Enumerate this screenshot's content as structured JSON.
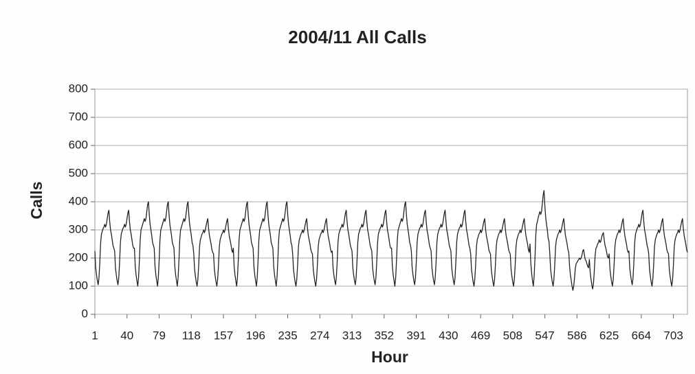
{
  "chart_data": {
    "type": "line",
    "title": "2004/11  All Calls",
    "x_label": "Hour",
    "y_label": "Calls",
    "xlim": [
      1,
      720
    ],
    "ylim": [
      0,
      800
    ],
    "xticks": [
      1,
      40,
      79,
      118,
      157,
      196,
      235,
      274,
      313,
      352,
      391,
      430,
      469,
      508,
      547,
      586,
      625,
      664,
      703
    ],
    "yticks": [
      0,
      100,
      200,
      300,
      400,
      500,
      600,
      700,
      800
    ],
    "grid": true,
    "color": "#222222",
    "x": [
      1,
      2,
      3,
      4,
      5,
      6,
      7,
      8,
      9,
      10,
      11,
      12,
      13,
      14,
      15,
      16,
      17,
      18,
      19,
      20,
      21,
      22,
      23,
      24,
      25,
      26,
      27,
      28,
      29,
      30,
      31,
      32,
      33,
      34,
      35,
      36,
      37,
      38,
      39,
      40,
      41,
      42,
      43,
      44,
      45,
      46,
      47,
      48,
      49,
      50,
      51,
      52,
      53,
      54,
      55,
      56,
      57,
      58,
      59,
      60,
      61,
      62,
      63,
      64,
      65,
      66,
      67,
      68,
      69,
      70,
      71,
      72,
      73,
      74,
      75,
      76,
      77,
      78,
      79,
      80,
      81,
      82,
      83,
      84,
      85,
      86,
      87,
      88,
      89,
      90,
      91,
      92,
      93,
      94,
      95,
      96,
      97,
      98,
      99,
      100,
      101,
      102,
      103,
      104,
      105,
      106,
      107,
      108,
      109,
      110,
      111,
      112,
      113,
      114,
      115,
      116,
      117,
      118,
      119,
      120,
      121,
      122,
      123,
      124,
      125,
      126,
      127,
      128,
      129,
      130,
      131,
      132,
      133,
      134,
      135,
      136,
      137,
      138,
      139,
      140,
      141,
      142,
      143,
      144,
      145,
      146,
      147,
      148,
      149,
      150,
      151,
      152,
      153,
      154,
      155,
      156,
      157,
      158,
      159,
      160,
      161,
      162,
      163,
      164,
      165,
      166,
      167,
      168,
      169,
      170,
      171,
      172,
      173,
      174,
      175,
      176,
      177,
      178,
      179,
      180,
      181,
      182,
      183,
      184,
      185,
      186,
      187,
      188,
      189,
      190,
      191,
      192,
      193,
      194,
      195,
      196,
      197,
      198,
      199,
      200,
      201,
      202,
      203,
      204,
      205,
      206,
      207,
      208,
      209,
      210,
      211,
      212,
      213,
      214,
      215,
      216,
      217,
      218,
      219,
      220,
      221,
      222,
      223,
      224,
      225,
      226,
      227,
      228,
      229,
      230,
      231,
      232,
      233,
      234,
      235,
      236,
      237,
      238,
      239,
      240,
      241,
      242,
      243,
      244,
      245,
      246,
      247,
      248,
      249,
      250,
      251,
      252,
      253,
      254,
      255,
      256,
      257,
      258,
      259,
      260,
      261,
      262,
      263,
      264,
      265,
      266,
      267,
      268,
      269,
      270,
      271,
      272,
      273,
      274,
      275,
      276,
      277,
      278,
      279,
      280,
      281,
      282,
      283,
      284,
      285,
      286,
      287,
      288,
      289,
      290,
      291,
      292,
      293,
      294,
      295,
      296,
      297,
      298,
      299,
      300,
      301,
      302,
      303,
      304,
      305,
      306,
      307,
      308,
      309,
      310,
      311,
      312,
      313,
      314,
      315,
      316,
      317,
      318,
      319,
      320,
      321,
      322,
      323,
      324,
      325,
      326,
      327,
      328,
      329,
      330,
      331,
      332,
      333,
      334,
      335,
      336,
      337,
      338,
      339,
      340,
      341,
      342,
      343,
      344,
      345,
      346,
      347,
      348,
      349,
      350,
      351,
      352,
      353,
      354,
      355,
      356,
      357,
      358,
      359,
      360,
      361,
      362,
      363,
      364,
      365,
      366,
      367,
      368,
      369,
      370,
      371,
      372,
      373,
      374,
      375,
      376,
      377,
      378,
      379,
      380,
      381,
      382,
      383,
      384,
      385,
      386,
      387,
      388,
      389,
      390,
      391,
      392,
      393,
      394,
      395,
      396,
      397,
      398,
      399,
      400,
      401,
      402,
      403,
      404,
      405,
      406,
      407,
      408,
      409,
      410,
      411,
      412,
      413,
      414,
      415,
      416,
      417,
      418,
      419,
      420,
      421,
      422,
      423,
      424,
      425,
      426,
      427,
      428,
      429,
      430,
      431,
      432,
      433,
      434,
      435,
      436,
      437,
      438,
      439,
      440,
      441,
      442,
      443,
      444,
      445,
      446,
      447,
      448,
      449,
      450,
      451,
      452,
      453,
      454,
      455,
      456,
      457,
      458,
      459,
      460,
      461,
      462,
      463,
      464,
      465,
      466,
      467,
      468,
      469,
      470,
      471,
      472,
      473,
      474,
      475,
      476,
      477,
      478,
      479,
      480,
      481,
      482,
      483,
      484,
      485,
      486,
      487,
      488,
      489,
      490,
      491,
      492,
      493,
      494,
      495,
      496,
      497,
      498,
      499,
      500,
      501,
      502,
      503,
      504,
      505,
      506,
      507,
      508,
      509,
      510,
      511,
      512,
      513,
      514,
      515,
      516,
      517,
      518,
      519,
      520,
      521,
      522,
      523,
      524,
      525,
      526,
      527,
      528,
      529,
      530,
      531,
      532,
      533,
      534,
      535,
      536,
      537,
      538,
      539,
      540,
      541,
      542,
      543,
      544,
      545,
      546,
      547,
      548,
      549,
      550,
      551,
      552,
      553,
      554,
      555,
      556,
      557,
      558,
      559,
      560,
      561,
      562,
      563,
      564,
      565,
      566,
      567,
      568,
      569,
      570,
      571,
      572,
      573,
      574,
      575,
      576,
      577,
      578,
      579,
      580,
      581,
      582,
      583,
      584,
      585,
      586,
      587,
      588,
      589,
      590,
      591,
      592,
      593,
      594,
      595,
      596,
      597,
      598,
      599,
      600,
      601,
      602,
      603,
      604,
      605,
      606,
      607,
      608,
      609,
      610,
      611,
      612,
      613,
      614,
      615,
      616,
      617,
      618,
      619,
      620,
      621,
      622,
      623,
      624,
      625,
      626,
      627,
      628,
      629,
      630,
      631,
      632,
      633,
      634,
      635,
      636,
      637,
      638,
      639,
      640,
      641,
      642,
      643,
      644,
      645,
      646,
      647,
      648,
      649,
      650,
      651,
      652,
      653,
      654,
      655,
      656,
      657,
      658,
      659,
      660,
      661,
      662,
      663,
      664,
      665,
      666,
      667,
      668,
      669,
      670,
      671,
      672,
      673,
      674,
      675,
      676,
      677,
      678,
      679,
      680,
      681,
      682,
      683,
      684,
      685,
      686,
      687,
      688,
      689,
      690,
      691,
      692,
      693,
      694,
      695,
      696,
      697,
      698,
      699,
      700,
      701,
      702,
      703,
      704,
      705,
      706,
      707,
      708,
      709,
      710,
      711,
      712,
      713,
      714,
      715,
      716,
      717,
      718,
      719,
      720
    ],
    "values": [
      225,
      165,
      140,
      120,
      105,
      130,
      185,
      255,
      285,
      295,
      305,
      310,
      320,
      310,
      320,
      340,
      360,
      370,
      330,
      300,
      285,
      265,
      245,
      235,
      225,
      165,
      140,
      120,
      105,
      130,
      185,
      255,
      285,
      295,
      305,
      310,
      320,
      310,
      320,
      340,
      360,
      370,
      330,
      300,
      285,
      265,
      245,
      235,
      235,
      170,
      140,
      120,
      100,
      130,
      190,
      265,
      300,
      310,
      320,
      330,
      340,
      330,
      340,
      365,
      390,
      400,
      355,
      320,
      300,
      280,
      255,
      245,
      235,
      170,
      140,
      120,
      100,
      130,
      190,
      265,
      300,
      310,
      320,
      330,
      340,
      330,
      340,
      365,
      390,
      400,
      355,
      320,
      300,
      280,
      255,
      245,
      235,
      170,
      140,
      120,
      100,
      130,
      190,
      265,
      300,
      310,
      320,
      330,
      340,
      330,
      340,
      365,
      390,
      400,
      355,
      320,
      300,
      280,
      255,
      245,
      215,
      160,
      135,
      115,
      100,
      125,
      175,
      240,
      265,
      275,
      285,
      290,
      300,
      290,
      300,
      315,
      330,
      340,
      305,
      280,
      265,
      250,
      230,
      220,
      215,
      160,
      135,
      115,
      100,
      125,
      175,
      240,
      265,
      275,
      285,
      290,
      300,
      290,
      300,
      315,
      330,
      340,
      305,
      280,
      265,
      250,
      230,
      220,
      235,
      170,
      140,
      120,
      100,
      130,
      190,
      265,
      300,
      310,
      320,
      330,
      340,
      330,
      340,
      365,
      390,
      400,
      355,
      320,
      300,
      280,
      255,
      245,
      235,
      170,
      140,
      120,
      100,
      130,
      190,
      265,
      300,
      310,
      320,
      330,
      340,
      330,
      340,
      365,
      390,
      400,
      355,
      320,
      300,
      280,
      255,
      245,
      235,
      170,
      140,
      120,
      100,
      130,
      190,
      265,
      300,
      310,
      320,
      330,
      340,
      330,
      340,
      365,
      390,
      400,
      355,
      320,
      300,
      280,
      255,
      245,
      215,
      160,
      135,
      115,
      100,
      125,
      175,
      240,
      265,
      275,
      285,
      290,
      300,
      290,
      300,
      315,
      330,
      340,
      305,
      280,
      265,
      250,
      230,
      220,
      215,
      160,
      135,
      115,
      100,
      125,
      175,
      240,
      265,
      275,
      285,
      290,
      300,
      290,
      300,
      315,
      330,
      340,
      305,
      280,
      265,
      250,
      230,
      220,
      225,
      165,
      140,
      120,
      105,
      130,
      185,
      255,
      285,
      295,
      305,
      310,
      320,
      310,
      320,
      340,
      360,
      370,
      330,
      300,
      285,
      265,
      245,
      235,
      225,
      165,
      140,
      120,
      105,
      130,
      185,
      255,
      285,
      295,
      305,
      310,
      320,
      310,
      320,
      340,
      360,
      370,
      330,
      300,
      285,
      265,
      245,
      235,
      225,
      165,
      140,
      120,
      105,
      130,
      185,
      255,
      285,
      295,
      305,
      310,
      320,
      310,
      320,
      340,
      360,
      370,
      330,
      300,
      285,
      265,
      245,
      235,
      235,
      170,
      140,
      120,
      100,
      130,
      190,
      265,
      300,
      310,
      320,
      330,
      340,
      330,
      340,
      365,
      390,
      400,
      355,
      320,
      300,
      280,
      255,
      245,
      225,
      165,
      140,
      120,
      105,
      130,
      185,
      255,
      285,
      295,
      305,
      310,
      320,
      310,
      320,
      340,
      360,
      370,
      330,
      300,
      285,
      265,
      245,
      235,
      225,
      165,
      140,
      120,
      105,
      130,
      185,
      255,
      285,
      295,
      305,
      310,
      320,
      310,
      320,
      340,
      360,
      370,
      330,
      300,
      285,
      265,
      245,
      235,
      225,
      165,
      140,
      120,
      105,
      130,
      185,
      255,
      285,
      295,
      305,
      310,
      320,
      310,
      320,
      340,
      360,
      370,
      330,
      300,
      285,
      265,
      245,
      235,
      215,
      160,
      135,
      115,
      100,
      125,
      175,
      240,
      265,
      275,
      285,
      290,
      300,
      290,
      300,
      315,
      330,
      340,
      305,
      280,
      265,
      250,
      230,
      220,
      215,
      160,
      135,
      115,
      100,
      125,
      175,
      240,
      265,
      275,
      285,
      290,
      300,
      290,
      300,
      315,
      330,
      340,
      305,
      280,
      265,
      250,
      230,
      220,
      215,
      160,
      135,
      115,
      100,
      125,
      175,
      240,
      265,
      275,
      285,
      290,
      300,
      290,
      300,
      315,
      330,
      340,
      305,
      280,
      265,
      250,
      230,
      220,
      250,
      180,
      145,
      120,
      100,
      135,
      200,
      280,
      320,
      330,
      345,
      355,
      365,
      355,
      365,
      395,
      425,
      440,
      385,
      345,
      320,
      300,
      270,
      260,
      215,
      160,
      135,
      115,
      100,
      125,
      175,
      240,
      265,
      275,
      285,
      290,
      300,
      290,
      300,
      315,
      330,
      340,
      305,
      280,
      265,
      250,
      230,
      220,
      170,
      140,
      120,
      100,
      85,
      100,
      130,
      165,
      180,
      185,
      190,
      195,
      200,
      195,
      200,
      210,
      225,
      230,
      210,
      195,
      190,
      180,
      170,
      165,
      195,
      150,
      125,
      105,
      90,
      110,
      155,
      210,
      235,
      240,
      250,
      255,
      265,
      255,
      260,
      275,
      285,
      290,
      265,
      245,
      235,
      220,
      205,
      200,
      215,
      160,
      135,
      115,
      100,
      125,
      175,
      240,
      265,
      275,
      285,
      290,
      300,
      290,
      300,
      315,
      330,
      340,
      305,
      280,
      265,
      250,
      230,
      220,
      225,
      165,
      140,
      120,
      105,
      130,
      185,
      255,
      285,
      295,
      305,
      310,
      320,
      310,
      320,
      340,
      360,
      370,
      330,
      300,
      285,
      265,
      245,
      235,
      215,
      160,
      135,
      115,
      100,
      125,
      175,
      240,
      265,
      275,
      285,
      290,
      300,
      290,
      300,
      315,
      330,
      340,
      305,
      280,
      265,
      250,
      230,
      220,
      215,
      160,
      135,
      115,
      100,
      125,
      175,
      240,
      265,
      275,
      285,
      290,
      300,
      290,
      300,
      315,
      330,
      340,
      305,
      280,
      265,
      250,
      230,
      220
    ]
  }
}
